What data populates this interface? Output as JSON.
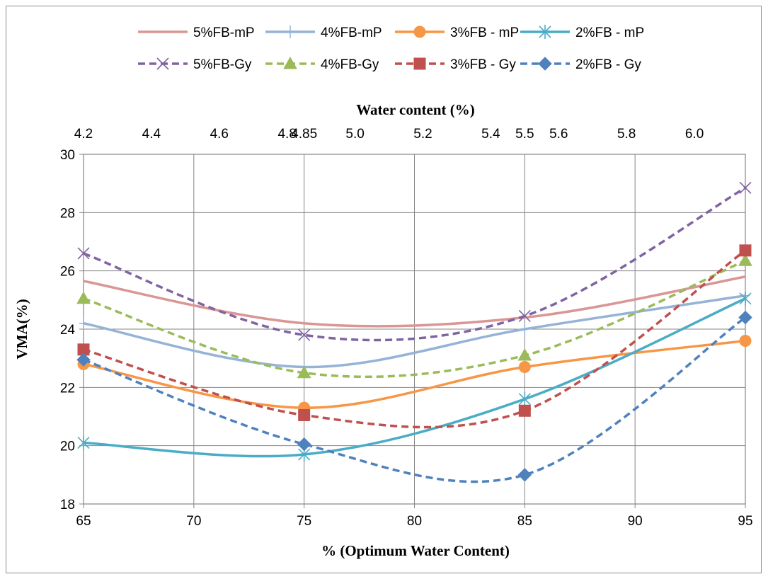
{
  "chart_data": {
    "type": "line",
    "xlabel": "% (Optimum Water Content)",
    "x2label": "Water content (%)",
    "ylabel": "VMA(%)",
    "xlim": [
      65,
      95
    ],
    "ylim": [
      18,
      30
    ],
    "x2lim": [
      4.2,
      6.15
    ],
    "xticks": [
      65,
      70,
      75,
      80,
      85,
      90,
      95
    ],
    "yticks": [
      18,
      20,
      22,
      24,
      26,
      28,
      30
    ],
    "x2ticks": [
      "4.2",
      "4.4",
      "4.6",
      "4.8",
      "5.0",
      "5.2",
      "5.4",
      "5.6",
      "5.8",
      "6.0"
    ],
    "x2tick_values": [
      4.2,
      4.4,
      4.6,
      4.8,
      5.0,
      5.2,
      5.4,
      5.6,
      5.8,
      6.0
    ],
    "x2_labels_extra": [
      {
        "label": "4.85",
        "value": 4.85
      },
      {
        "label": "5.5",
        "value": 5.5
      }
    ],
    "grid": true,
    "legend_position": "top",
    "x": [
      65,
      75,
      85,
      95
    ],
    "series": [
      {
        "name": "5%FB-mP",
        "values": [
          25.65,
          24.2,
          24.4,
          25.8
        ],
        "color": "#d99694",
        "dash": "solid",
        "marker": "none"
      },
      {
        "name": "4%FB-mP",
        "values": [
          24.2,
          22.7,
          24.0,
          25.15
        ],
        "color": "#95b3d7",
        "dash": "solid",
        "marker": "plus"
      },
      {
        "name": "3%FB - mP",
        "values": [
          22.8,
          21.3,
          22.7,
          23.6
        ],
        "color": "#f79646",
        "dash": "solid",
        "marker": "circle"
      },
      {
        "name": "2%FB - mP",
        "values": [
          20.1,
          19.7,
          21.6,
          25.05
        ],
        "color": "#4bacc6",
        "dash": "solid",
        "marker": "star"
      },
      {
        "name": "5%FB-Gy",
        "values": [
          26.6,
          23.8,
          24.45,
          28.85
        ],
        "color": "#8064a2",
        "dash": "dashed",
        "marker": "x"
      },
      {
        "name": "4%FB-Gy",
        "values": [
          25.05,
          22.5,
          23.1,
          26.35
        ],
        "color": "#9bbb59",
        "dash": "dashed",
        "marker": "triangle"
      },
      {
        "name": "3%FB - Gy",
        "values": [
          23.3,
          21.05,
          21.2,
          26.7
        ],
        "color": "#c0504d",
        "dash": "dashed",
        "marker": "square"
      },
      {
        "name": "2%FB - Gy",
        "values": [
          22.95,
          20.05,
          19.0,
          24.4
        ],
        "color": "#4f81bd",
        "dash": "dashed",
        "marker": "diamond"
      }
    ]
  }
}
